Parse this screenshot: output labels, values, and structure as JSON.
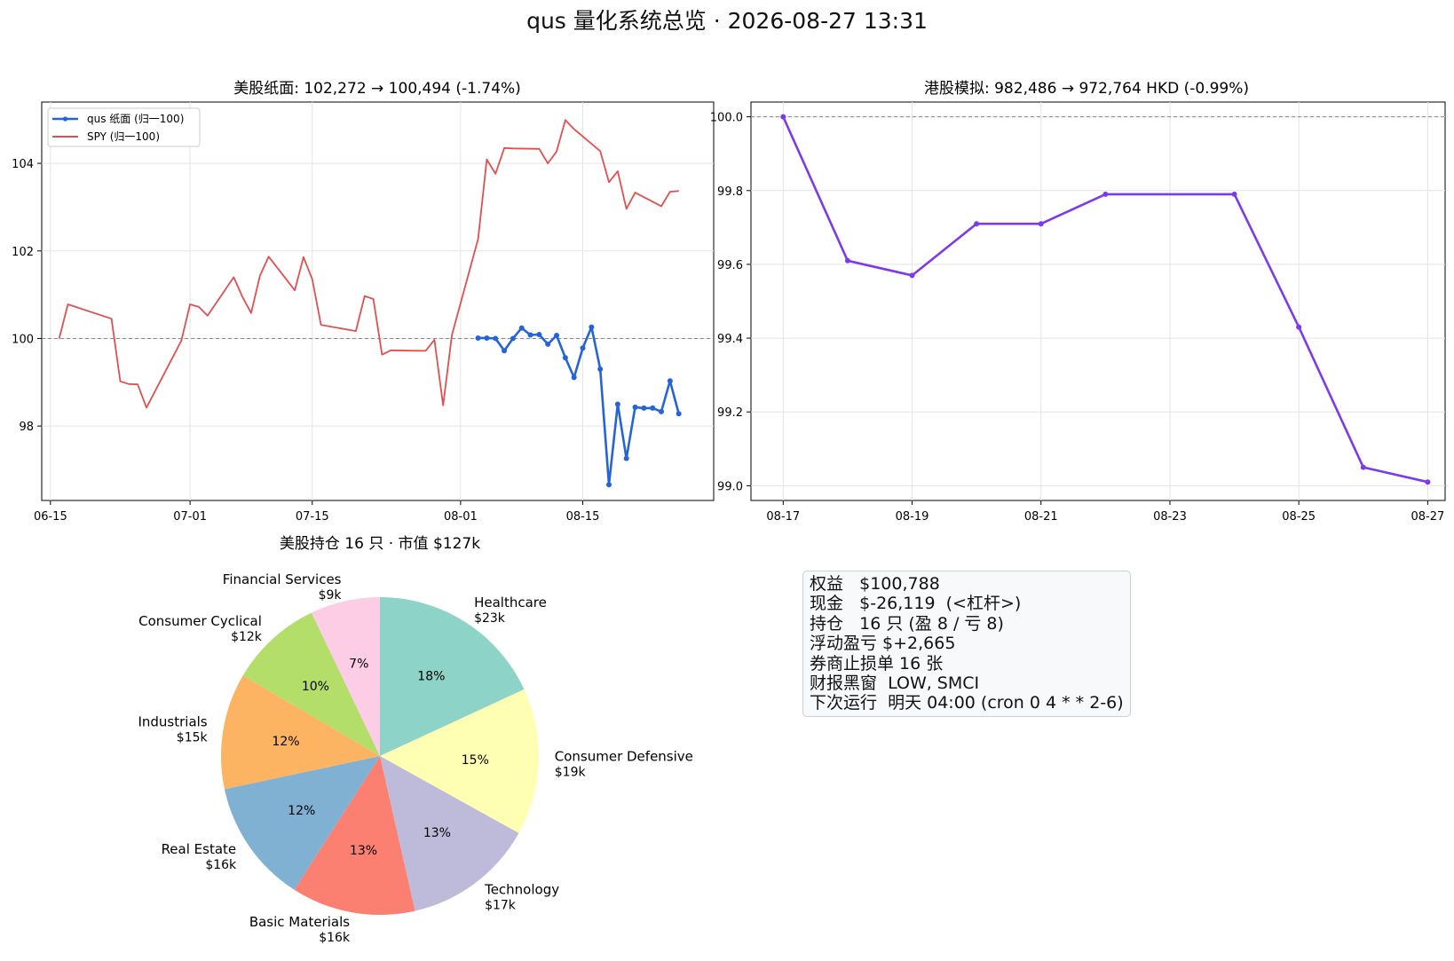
{
  "suptitle": "qus 量化系统总览  ·  2026-08-27 13:31",
  "us_chart": {
    "title": "美股纸面: 102,272 → 100,494  (-1.74%)",
    "legend": [
      "qus 纸面 (归一100)",
      "SPY (归一100)"
    ],
    "x_ticks": [
      "06-15",
      "07-01",
      "07-15",
      "08-01",
      "08-15"
    ],
    "y_ticks": [
      "98",
      "100",
      "102",
      "104"
    ],
    "colors": {
      "qus": "#2563d9",
      "spy": "#e05050",
      "ref": "#888888"
    }
  },
  "hk_chart": {
    "title": "港股模拟: 982,486 → 972,764 HKD  (-0.99%)",
    "x_ticks": [
      "08-17",
      "08-19",
      "08-21",
      "08-23",
      "08-25",
      "08-27"
    ],
    "y_ticks": [
      "99.0",
      "99.2",
      "99.4",
      "99.6",
      "99.8",
      "100.0"
    ],
    "colors": {
      "line": "#7c3aed"
    }
  },
  "pie_chart": {
    "title": "美股持仓 16 只  ·  市值 $127k"
  },
  "info_panel": {
    "lines": [
      "权益   $100,788",
      "现金   $-26,119  (<杠杆>)",
      "持仓   16 只 (盈 8 / 亏 8)",
      "浮动盈亏 $+2,665",
      "券商止损单 16 张",
      "财报黑窗  LOW, SMCI",
      "下次运行  明天 04:00 (cron 0 4 * * 2-6)"
    ]
  },
  "chart_data": [
    {
      "type": "line",
      "title": "美股纸面: 102,272 → 100,494  (-1.74%)",
      "xlabel": "",
      "ylabel": "",
      "ylim": [
        96.3,
        105.4
      ],
      "x_range": [
        "2026-06-14",
        "2026-08-30"
      ],
      "reference_line": 100,
      "grid": true,
      "legend_position": "upper left",
      "series": [
        {
          "name": "SPY (归一100)",
          "color": "#e05050",
          "markers": false,
          "x": [
            "2026-06-16",
            "2026-06-17",
            "2026-06-22",
            "2026-06-23",
            "2026-06-24",
            "2026-06-25",
            "2026-06-26",
            "2026-06-30",
            "2026-07-01",
            "2026-07-02",
            "2026-07-03",
            "2026-07-06",
            "2026-07-07",
            "2026-07-08",
            "2026-07-09",
            "2026-07-10",
            "2026-07-13",
            "2026-07-14",
            "2026-07-15",
            "2026-07-16",
            "2026-07-20",
            "2026-07-21",
            "2026-07-22",
            "2026-07-23",
            "2026-07-24",
            "2026-07-27",
            "2026-07-28",
            "2026-07-29",
            "2026-07-30",
            "2026-07-31",
            "2026-08-03",
            "2026-08-04",
            "2026-08-05",
            "2026-08-06",
            "2026-08-07",
            "2026-08-10",
            "2026-08-11",
            "2026-08-12",
            "2026-08-13",
            "2026-08-14",
            "2026-08-17",
            "2026-08-18",
            "2026-08-19",
            "2026-08-20",
            "2026-08-21",
            "2026-08-24",
            "2026-08-25",
            "2026-08-26"
          ],
          "y": [
            100.0,
            100.78,
            100.45,
            99.02,
            98.96,
            98.95,
            98.42,
            99.95,
            100.78,
            100.72,
            100.52,
            101.4,
            100.95,
            100.58,
            101.43,
            101.87,
            101.1,
            101.86,
            101.35,
            100.31,
            100.17,
            100.97,
            100.9,
            99.63,
            99.73,
            99.72,
            99.72,
            99.97,
            98.47,
            100.08,
            102.27,
            104.09,
            103.76,
            104.35,
            104.34,
            104.33,
            104.0,
            104.27,
            104.99,
            104.78,
            104.28,
            103.57,
            103.82,
            102.96,
            103.33,
            103.02,
            103.35,
            103.37
          ]
        },
        {
          "name": "qus 纸面 (归一100)",
          "color": "#2563d9",
          "markers": true,
          "x": [
            "2026-08-03",
            "2026-08-04",
            "2026-08-05",
            "2026-08-06",
            "2026-08-07",
            "2026-08-08",
            "2026-08-09",
            "2026-08-10",
            "2026-08-11",
            "2026-08-12",
            "2026-08-13",
            "2026-08-14",
            "2026-08-15",
            "2026-08-16",
            "2026-08-17",
            "2026-08-18",
            "2026-08-19",
            "2026-08-20",
            "2026-08-21",
            "2026-08-22",
            "2026-08-23",
            "2026-08-24",
            "2026-08-25",
            "2026-08-26"
          ],
          "y": [
            100.01,
            100.01,
            100.0,
            99.72,
            100.0,
            100.24,
            100.08,
            100.09,
            99.87,
            100.07,
            99.56,
            99.11,
            99.78,
            100.26,
            99.3,
            96.66,
            98.5,
            97.26,
            98.43,
            98.41,
            98.41,
            98.33,
            99.03,
            98.28
          ]
        }
      ]
    },
    {
      "type": "line",
      "title": "港股模拟: 982,486 → 972,764 HKD  (-0.99%)",
      "xlabel": "",
      "ylabel": "",
      "ylim": [
        98.96,
        100.04
      ],
      "x_range": [
        "2026-08-17",
        "2026-08-27"
      ],
      "reference_line": 100.0,
      "grid": true,
      "series": [
        {
          "name": "",
          "color": "#7c3aed",
          "markers": true,
          "x": [
            "2026-08-17",
            "2026-08-18",
            "2026-08-19",
            "2026-08-20",
            "2026-08-21",
            "2026-08-22",
            "2026-08-24",
            "2026-08-25",
            "2026-08-26",
            "2026-08-27"
          ],
          "y": [
            100.0,
            99.61,
            99.57,
            99.71,
            99.71,
            99.79,
            99.79,
            99.43,
            99.05,
            99.01
          ]
        }
      ]
    },
    {
      "type": "pie",
      "title": "美股持仓 16 只  ·  市值 $127k",
      "start_angle_deg": 90,
      "direction": "clockwise",
      "slices": [
        {
          "label": "Healthcare",
          "value_label": "$23k",
          "value": 23,
          "pct": "18%",
          "color": "#8dd3c7"
        },
        {
          "label": "Consumer Defensive",
          "value_label": "$19k",
          "value": 19,
          "pct": "15%",
          "color": "#ffffb3"
        },
        {
          "label": "Technology",
          "value_label": "$17k",
          "value": 17,
          "pct": "13%",
          "color": "#bebada"
        },
        {
          "label": "Basic Materials",
          "value_label": "$16k",
          "value": 16,
          "pct": "13%",
          "color": "#fb8072"
        },
        {
          "label": "Real Estate",
          "value_label": "$16k",
          "value": 16,
          "pct": "12%",
          "color": "#80b1d3"
        },
        {
          "label": "Industrials",
          "value_label": "$15k",
          "value": 15,
          "pct": "12%",
          "color": "#fdb462"
        },
        {
          "label": "Consumer Cyclical",
          "value_label": "$12k",
          "value": 12,
          "pct": "10%",
          "color": "#b3de69"
        },
        {
          "label": "Financial Services",
          "value_label": "$9k",
          "value": 9,
          "pct": "7%",
          "color": "#fccde5"
        }
      ]
    }
  ]
}
